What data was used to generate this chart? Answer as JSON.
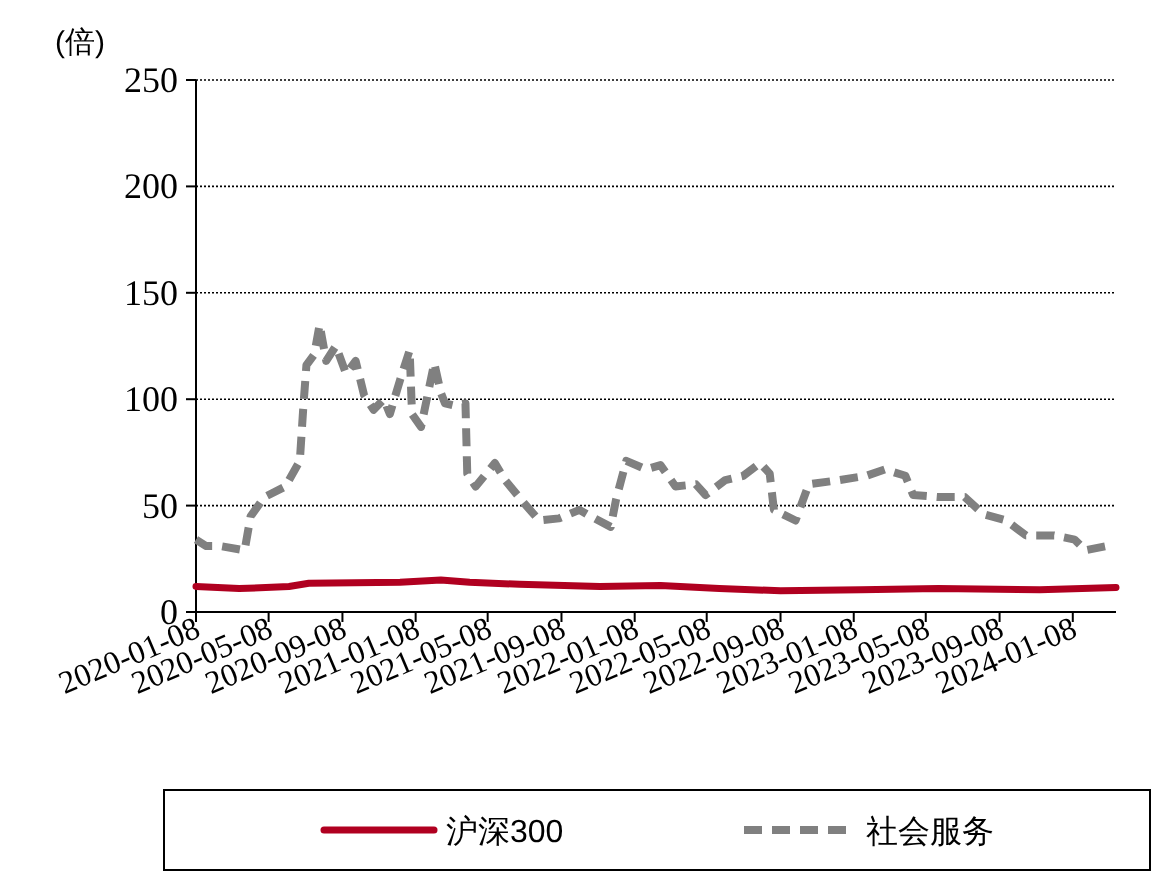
{
  "chart_data": {
    "type": "line",
    "ylabel": "(倍)",
    "xlim": [
      "2020-01-08",
      "2024-03-20"
    ],
    "ylim": [
      0,
      250
    ],
    "yticks": [
      0,
      50,
      100,
      150,
      200,
      250
    ],
    "xticks": [
      "2020-01-08",
      "2020-05-08",
      "2020-09-08",
      "2021-01-08",
      "2021-05-08",
      "2021-09-08",
      "2022-01-08",
      "2022-05-08",
      "2022-09-08",
      "2023-01-08",
      "2023-05-08",
      "2023-09-08",
      "2024-01-08"
    ],
    "grid": "y",
    "legend": "bottom",
    "marker": "none",
    "series": [
      {
        "name": "沪深300",
        "color": "#b00020",
        "line_style": "solid",
        "x": [
          "2020-01-08",
          "2020-03-20",
          "2020-06-11",
          "2020-07-14",
          "2020-12-13",
          "2021-02-19",
          "2021-04-08",
          "2021-06-30",
          "2021-11-11",
          "2022-02-20",
          "2022-05-29",
          "2022-09-08",
          "2023-01-20",
          "2023-05-29",
          "2023-11-14",
          "2024-03-20"
        ],
        "values": [
          12,
          11,
          12,
          13.5,
          14,
          15,
          14,
          13,
          12,
          12.5,
          11,
          10,
          10.5,
          11,
          10.5,
          11.5
        ]
      },
      {
        "name": "社会服务",
        "color": "#808080",
        "line_style": "dashed",
        "x": [
          "2020-01-08",
          "2020-01-25",
          "2020-02-17",
          "2020-03-29",
          "2020-04-08",
          "2020-05-01",
          "2020-06-05",
          "2020-06-29",
          "2020-07-05",
          "2020-07-10",
          "2020-07-23",
          "2020-08-01",
          "2020-08-12",
          "2020-08-28",
          "2020-09-14",
          "2020-09-30",
          "2020-10-14",
          "2020-10-30",
          "2020-11-16",
          "2020-11-26",
          "2020-12-13",
          "2020-12-29",
          "2021-01-02",
          "2021-01-17",
          "2021-02-08",
          "2021-02-19",
          "2021-02-26",
          "2021-03-13",
          "2021-04-01",
          "2021-04-04",
          "2021-04-18",
          "2021-05-20",
          "2021-06-06",
          "2021-07-08",
          "2021-08-02",
          "2021-09-04",
          "2021-10-08",
          "2021-10-20",
          "2021-11-29",
          "2021-12-08",
          "2021-12-25",
          "2022-01-27",
          "2022-02-20",
          "2022-03-17",
          "2022-04-20",
          "2022-05-06",
          "2022-06-08",
          "2022-07-08",
          "2022-08-05",
          "2022-08-21",
          "2022-08-28",
          "2022-10-03",
          "2022-10-25",
          "2022-12-15",
          "2023-01-29",
          "2023-03-01",
          "2023-04-04",
          "2023-04-17",
          "2023-05-29",
          "2023-07-12",
          "2023-08-12",
          "2023-09-19",
          "2023-10-22",
          "2023-12-08",
          "2024-01-11",
          "2024-01-29",
          "2024-03-04"
        ],
        "values": [
          34,
          31,
          31,
          29,
          45,
          54,
          59,
          71,
          97,
          116,
          121,
          135,
          118,
          125,
          112,
          118,
          102,
          95,
          100,
          93,
          109,
          123,
          93,
          87,
          117,
          103,
          98,
          97,
          98,
          65,
          59,
          70,
          62,
          51,
          43,
          44,
          48,
          46,
          40,
          53,
          71,
          67,
          69,
          59,
          60,
          55,
          62,
          64,
          70,
          65,
          48,
          43,
          60,
          62,
          64,
          67,
          64,
          55,
          54,
          54,
          46,
          43,
          36,
          36,
          34,
          29,
          31
        ]
      }
    ]
  }
}
